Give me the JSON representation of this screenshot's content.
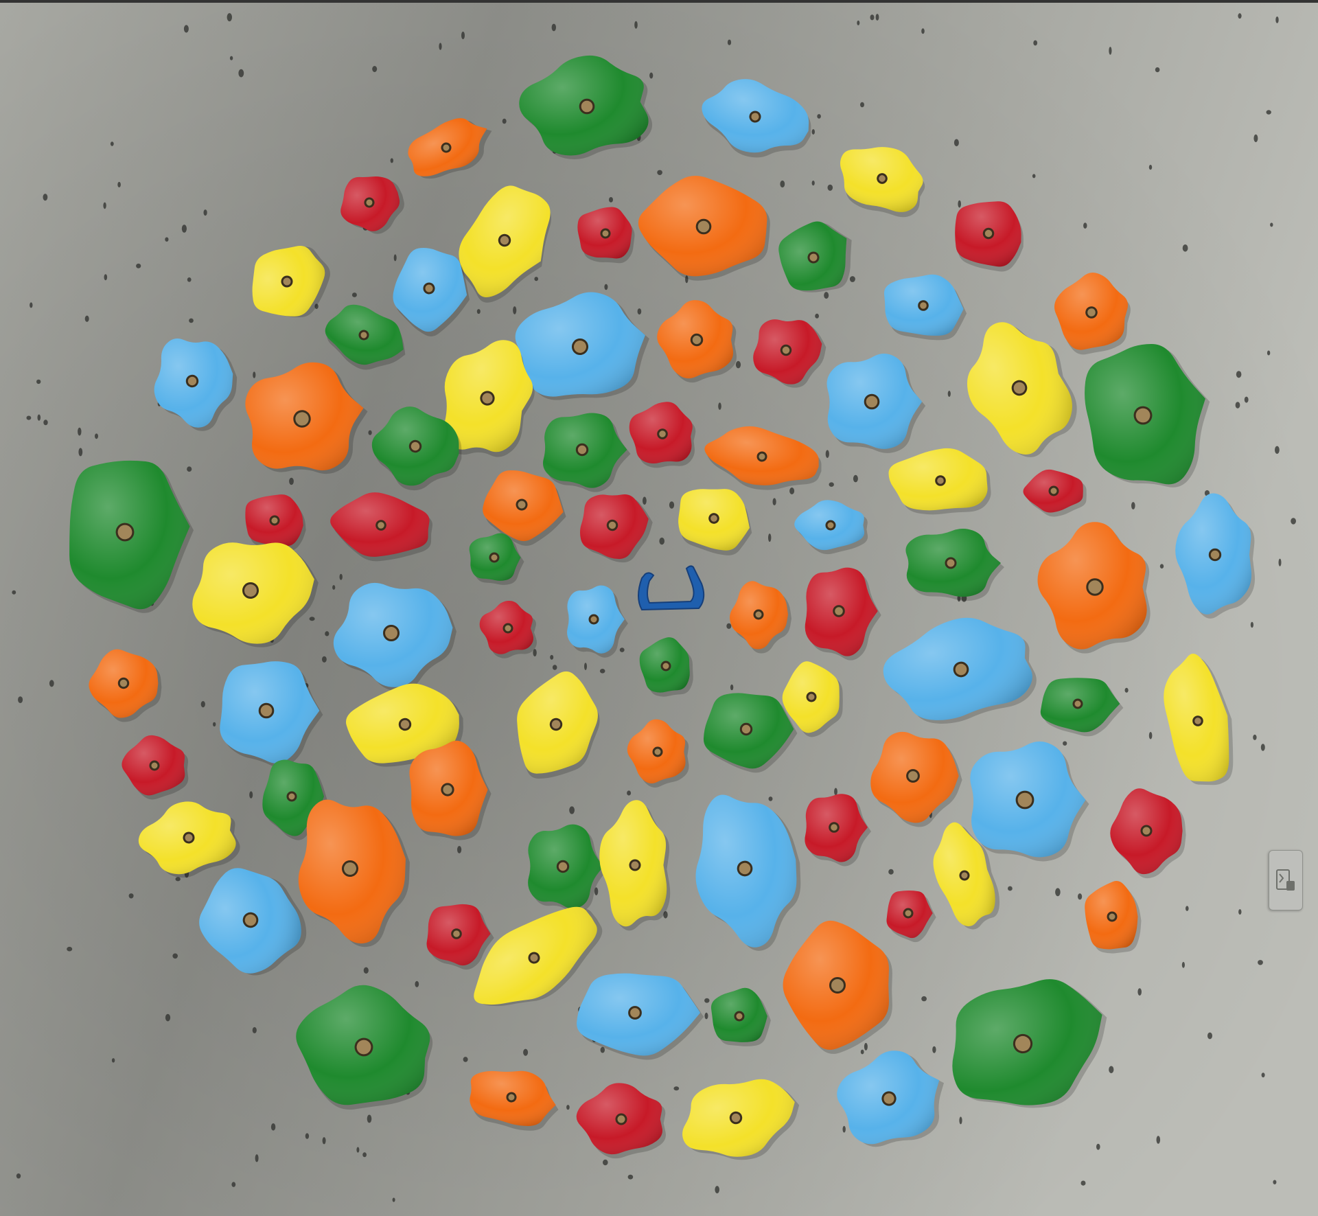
{
  "image": {
    "subject": "climbing-holds-on-wall",
    "colors": {
      "wall_light": "#b7b8b2",
      "wall_dark": "#8d8e89",
      "green": "#1f8a2e",
      "blue": "#57b2ea",
      "yellow": "#f4e12a",
      "orange": "#f36b12",
      "red": "#c71a28",
      "bolt": "#a2865a"
    }
  },
  "side_widget": {
    "icon": "device-sync-icon"
  }
}
